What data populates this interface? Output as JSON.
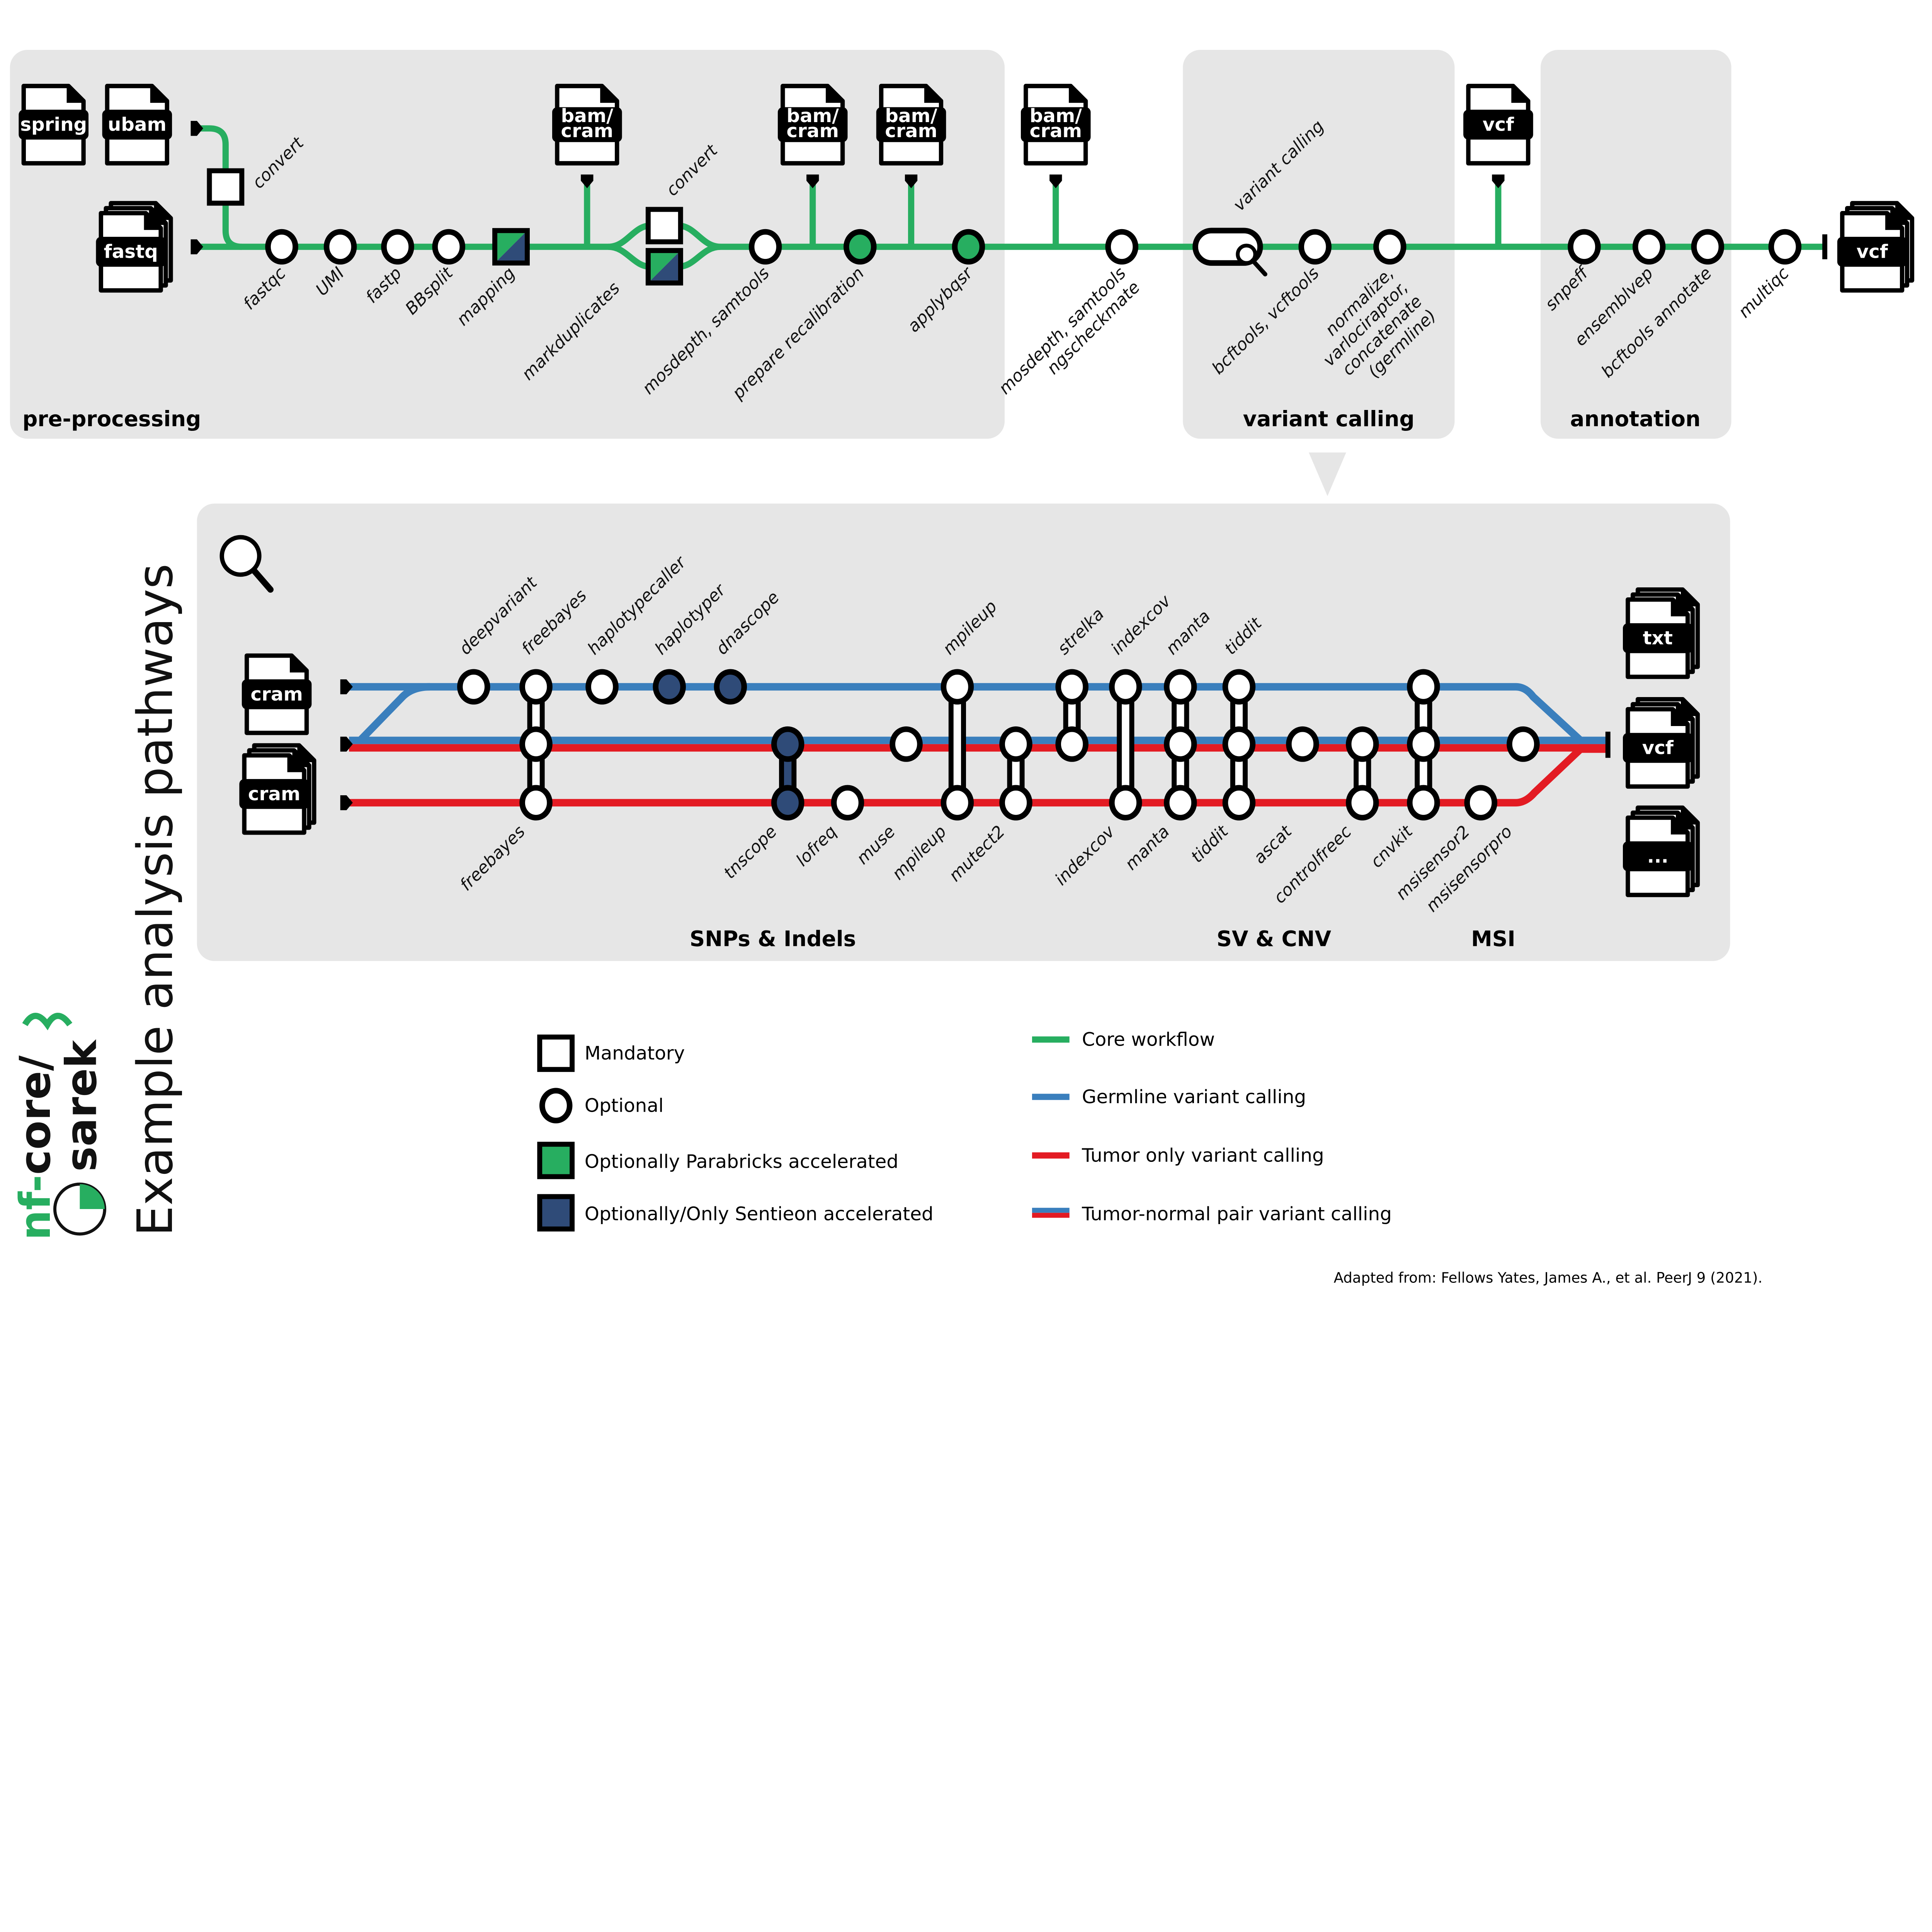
{
  "colors": {
    "core": "#27ae60",
    "germline": "#3a7fbd",
    "tumor": "#e31b23",
    "sentieon": "#2f4b78",
    "panel": "#e6e6e6"
  },
  "top": {
    "inputs": [
      "spring",
      "ubam",
      "fastq"
    ],
    "convert_labels": [
      "convert",
      "convert"
    ],
    "outputs": [
      "bam/\ncram",
      "bam/\ncram",
      "bam/\ncram",
      "bam/\ncram",
      "vcf",
      "vcf"
    ],
    "steps": [
      {
        "label": [
          "fastqc"
        ],
        "type": "optional"
      },
      {
        "label": [
          "UMI"
        ],
        "type": "optional"
      },
      {
        "label": [
          "fastp"
        ],
        "type": "optional"
      },
      {
        "label": [
          "BBsplit"
        ],
        "type": "optional"
      },
      {
        "label": [
          "mapping"
        ],
        "type": "parabricks-sentieon"
      },
      {
        "label": [
          "markduplicates"
        ],
        "type": "parabricks-sentieon"
      },
      {
        "label": [
          "mosdepth, samtools"
        ],
        "type": "optional"
      },
      {
        "label": [
          "prepare recalibration"
        ],
        "type": "parabricks"
      },
      {
        "label": [
          "applybqsr"
        ],
        "type": "parabricks"
      },
      {
        "label": [
          "mosdepth, samtools",
          "ngscheckmate"
        ],
        "type": "optional"
      },
      {
        "label": [
          "variant calling"
        ],
        "type": "pathway",
        "icon": "magnifier-icon"
      },
      {
        "label": [
          "bcftools, vcftools"
        ],
        "type": "optional"
      },
      {
        "label": [
          "normalize,",
          "varlociraptor,",
          "concatenate",
          "(germline)"
        ],
        "type": "optional"
      },
      {
        "label": [
          "snpeff"
        ],
        "type": "optional"
      },
      {
        "label": [
          "ensemblvep"
        ],
        "type": "optional"
      },
      {
        "label": [
          "bcftools annotate"
        ],
        "type": "optional"
      },
      {
        "label": [
          "multiqc"
        ],
        "type": "optional"
      }
    ],
    "sections": [
      "pre-processing",
      "variant calling",
      "annotation"
    ]
  },
  "bottom": {
    "inputs": [
      "cram",
      "cram"
    ],
    "outputs": [
      "txt",
      "vcf",
      "..."
    ],
    "top_labels": [
      "deepvariant",
      "freebayes",
      "haplotypecaller",
      "haplotyper",
      "dnascope",
      "mpileup",
      "strelka",
      "indexcov",
      "manta",
      "tiddit"
    ],
    "bottom_labels": [
      "freebayes",
      "tnscope",
      "lofreq",
      "muse",
      "mpileup",
      "mutect2",
      "indexcov",
      "manta",
      "tiddit",
      "ascat",
      "controlfreec",
      "cnvkit",
      "msisensor2",
      "msisensorpro"
    ],
    "sections": [
      "SNPs & Indels",
      "SV & CNV",
      "MSI"
    ],
    "icon": "magnifier-icon"
  },
  "title": "Example analysis pathways",
  "logo": {
    "prefix": "nf-",
    "core": "core/",
    "name": "sarek"
  },
  "legend": {
    "nodes": [
      "Mandatory",
      "Optional",
      "Optionally Parabricks accelerated",
      "Optionally/Only Sentieon accelerated"
    ],
    "lines": [
      "Core workflow",
      "Germline variant calling",
      "Tumor only variant calling",
      "Tumor-normal pair variant calling"
    ]
  },
  "citation": "Adapted from: Fellows Yates, James A., et al.  PeerJ 9 (2021)."
}
